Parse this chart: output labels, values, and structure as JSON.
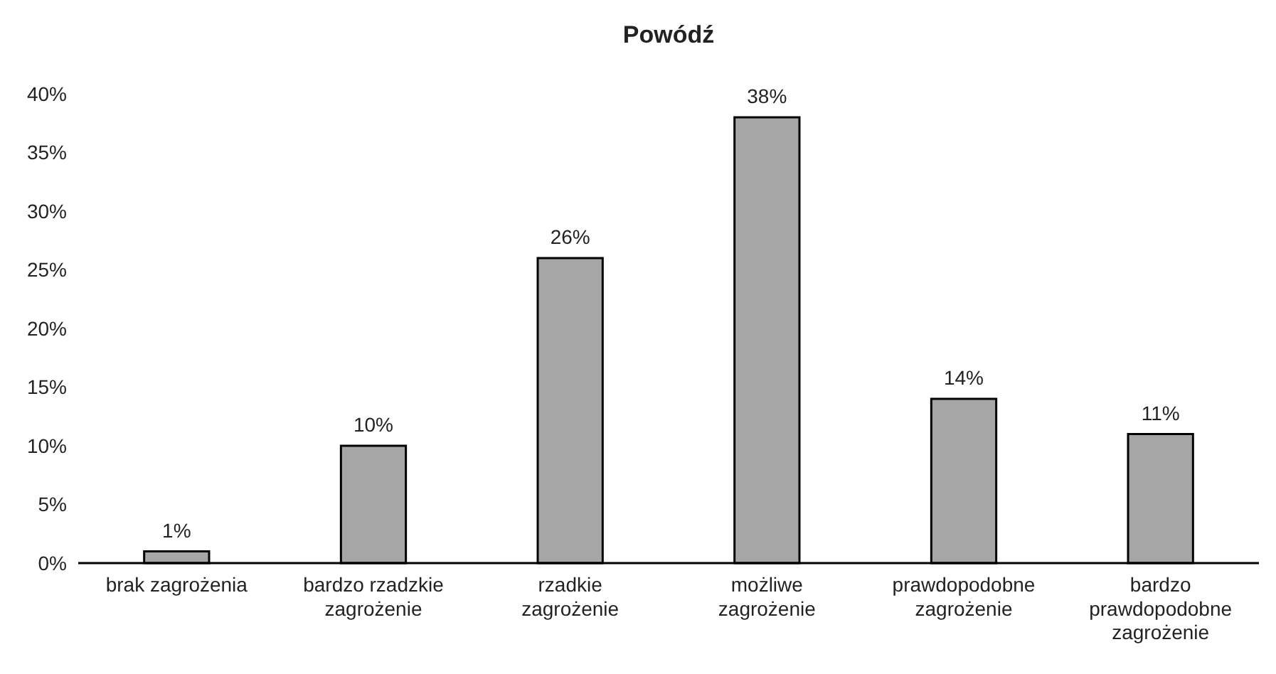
{
  "chart_data": {
    "type": "bar",
    "title": "Powódź",
    "categories": [
      "brak zagrożenia",
      "bardzo rzadzkie zagrożenie",
      "rzadkie zagrożenie",
      "możliwe zagrożenie",
      "prawdopodobne zagrożenie",
      "bardzo prawdopodobne zagrożenie"
    ],
    "values": [
      1,
      10,
      26,
      38,
      14,
      11
    ],
    "value_labels": [
      "1%",
      "10%",
      "26%",
      "38%",
      "14%",
      "11%"
    ],
    "color": "#a6a6a6",
    "ylim": [
      0,
      40
    ],
    "yticks": [
      {
        "value": 0,
        "label": "0%"
      },
      {
        "value": 5,
        "label": "5%"
      },
      {
        "value": 10,
        "label": "10%"
      },
      {
        "value": 15,
        "label": "15%"
      },
      {
        "value": 20,
        "label": "20%"
      },
      {
        "value": 25,
        "label": "25%"
      },
      {
        "value": 30,
        "label": "30%"
      },
      {
        "value": 35,
        "label": "35%"
      },
      {
        "value": 40,
        "label": "40%"
      }
    ],
    "grid": false
  }
}
